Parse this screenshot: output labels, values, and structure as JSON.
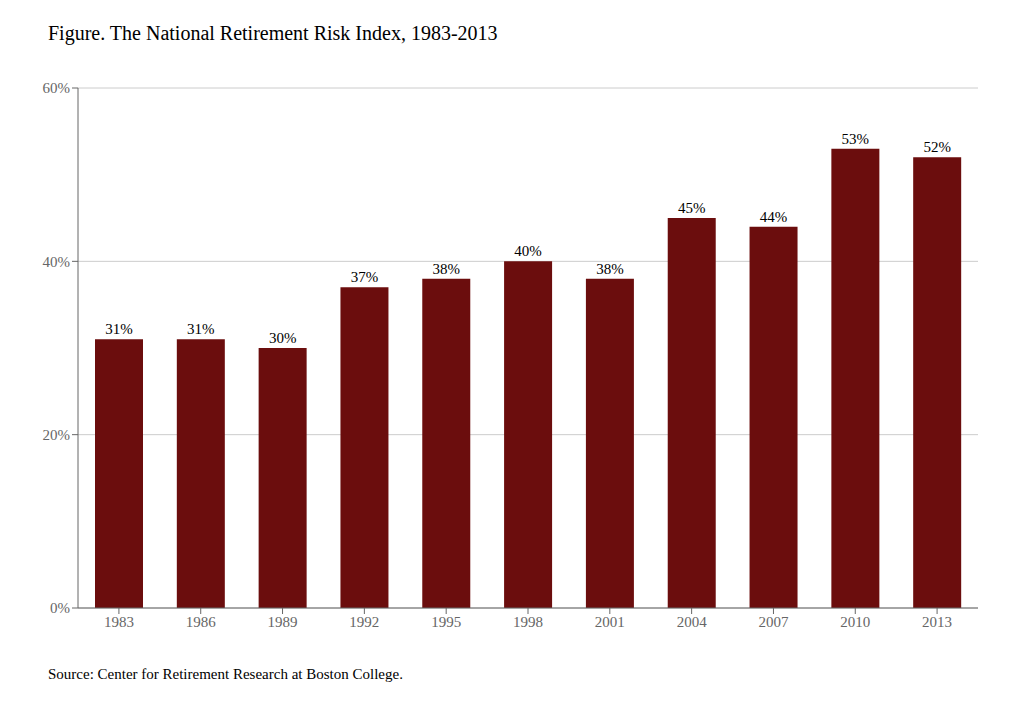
{
  "chart_data": {
    "type": "bar",
    "title": "Figure. The National Retirement Risk Index, 1983-2013",
    "annotations": [
      "Source: Center for Retirement Research at Boston College."
    ],
    "categories": [
      "1983",
      "1986",
      "1989",
      "1992",
      "1995",
      "1998",
      "2001",
      "2004",
      "2007",
      "2010",
      "2013"
    ],
    "values": [
      31,
      31,
      30,
      37,
      38,
      40,
      38,
      45,
      44,
      53,
      52
    ],
    "value_labels": [
      "31%",
      "31%",
      "30%",
      "37%",
      "38%",
      "40%",
      "38%",
      "45%",
      "44%",
      "53%",
      "52%"
    ],
    "data_labels": true,
    "color": "#6B0D0D",
    "ylim": [
      0,
      60
    ],
    "yticks": [
      {
        "value": 0,
        "label": "0%"
      },
      {
        "value": 20,
        "label": "20%"
      },
      {
        "value": 40,
        "label": "40%"
      },
      {
        "value": 60,
        "label": "60%"
      }
    ],
    "grid": true
  }
}
